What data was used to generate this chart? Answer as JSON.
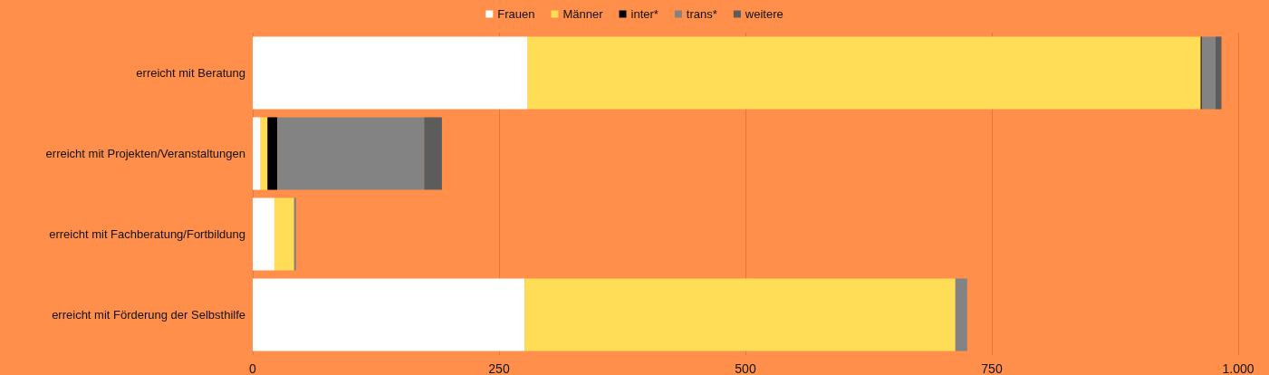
{
  "chart_data": {
    "type": "bar",
    "orientation": "horizontal",
    "stacked": true,
    "categories": [
      "erreicht mit Beratung",
      "erreicht mit Projekten/Veranstaltungen",
      "erreicht mit Fachberatung/Fortbildung",
      "erreicht mit Förderung der Selbsthilfe"
    ],
    "series": [
      {
        "name": "Frauen",
        "color": "#ffffff",
        "values": [
          279,
          8,
          22,
          276
        ]
      },
      {
        "name": "Männer",
        "color": "#ffdd57",
        "values": [
          683,
          7,
          20,
          437
        ]
      },
      {
        "name": "inter*",
        "color": "#000000",
        "values": [
          1,
          10,
          null,
          null
        ]
      },
      {
        "name": "trans*",
        "color": "#838383",
        "values": [
          14,
          149,
          2,
          12
        ]
      },
      {
        "name": "weitere",
        "color": "#5c5c5c",
        "values": [
          6,
          18,
          null,
          null
        ]
      }
    ],
    "xlim": [
      0,
      1000
    ],
    "xticks": [
      0,
      250,
      500,
      750,
      {
        "value": 1000,
        "label": "1.000"
      }
    ],
    "grid": "x",
    "legend": "top"
  }
}
